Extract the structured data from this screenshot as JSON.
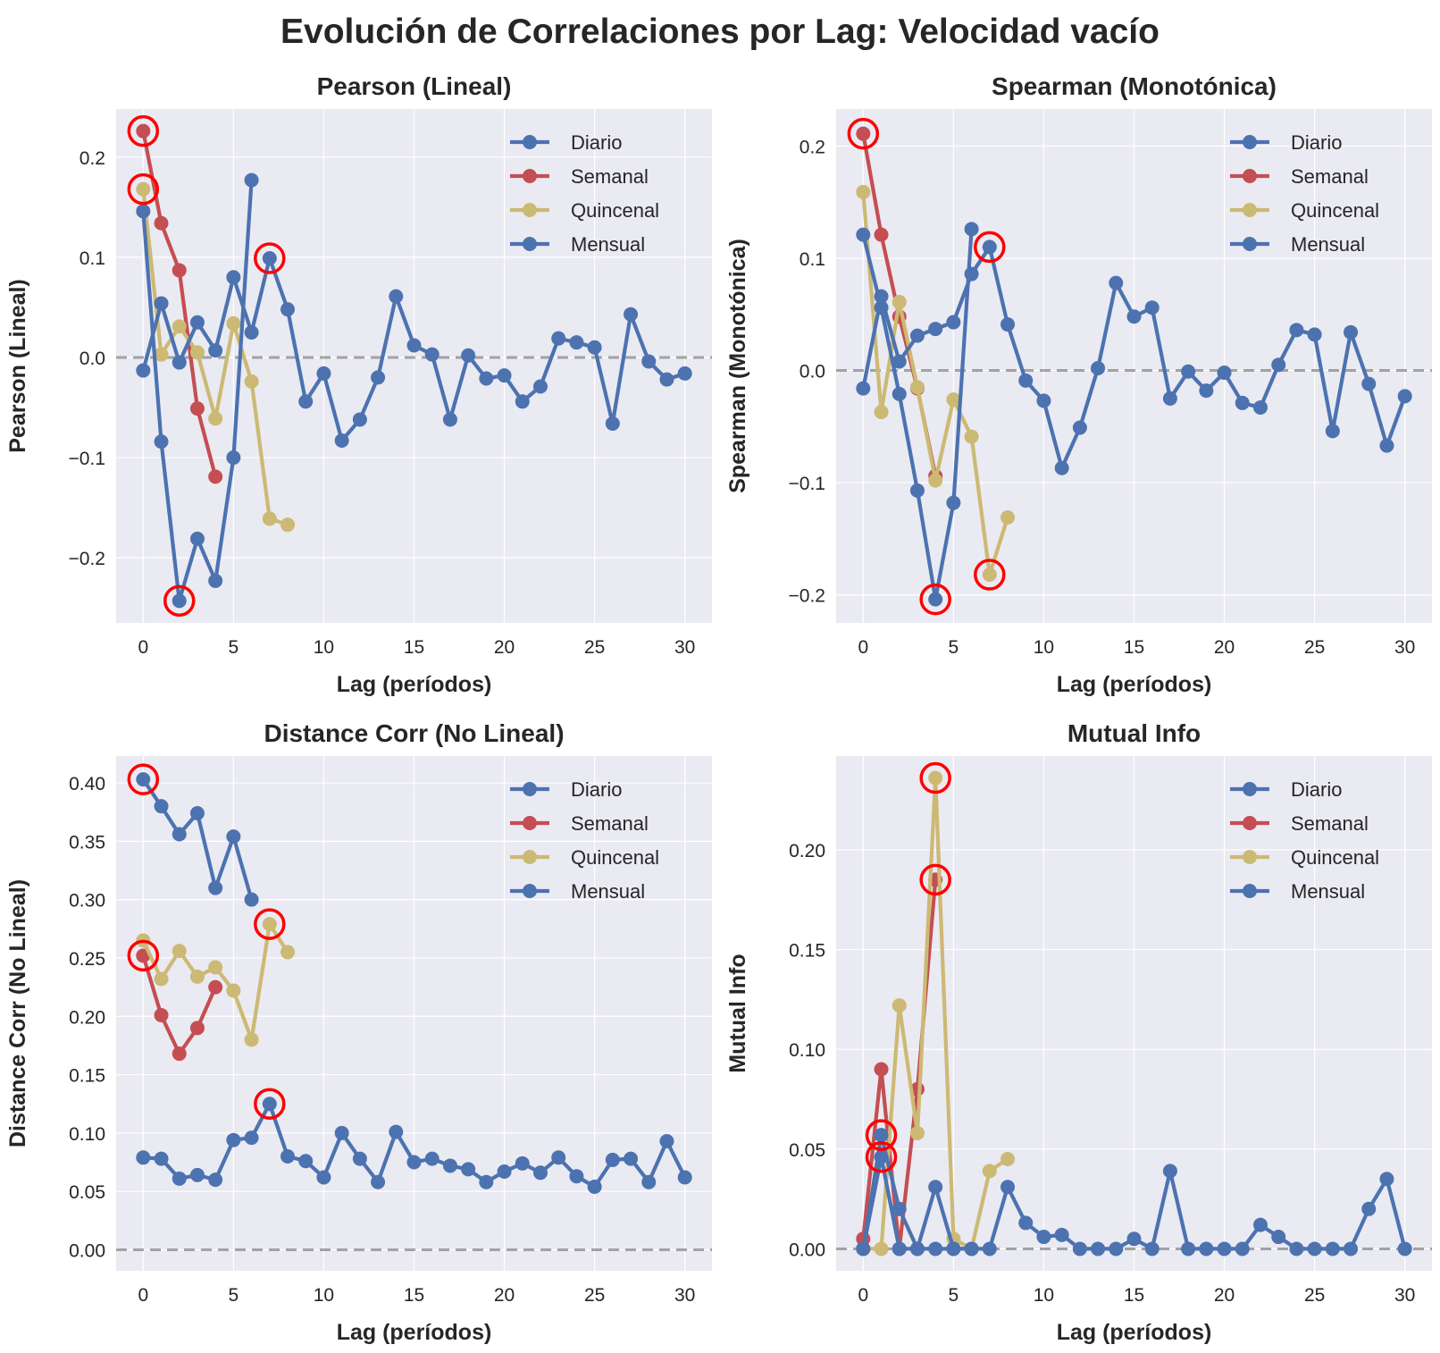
{
  "figure": {
    "title": "Evolución de Correlaciones por Lag: Velocidad vacío"
  },
  "colors": {
    "Diario": "#4c72b0",
    "Semanal": "#c44e52",
    "Quincenal": "#ccb974",
    "Mensual": "#4c72b0",
    "highlight": "#ff0000",
    "zero_line": "#808080",
    "plot_bg": "#eaeaf2",
    "grid": "#ffffff"
  },
  "chart_data": [
    {
      "type": "line",
      "title": "Pearson (Lineal)",
      "xlabel": "Lag (períodos)",
      "ylabel": "Pearson (Lineal)",
      "xlim": [
        -1.5,
        31.5
      ],
      "ylim": [
        -0.265,
        0.248
      ],
      "xticks": [
        0,
        5,
        10,
        15,
        20,
        25,
        30
      ],
      "yticks": [
        -0.2,
        -0.1,
        0.0,
        0.1,
        0.2
      ],
      "ytick_labels": [
        "−0.2",
        "−0.1",
        "0.0",
        "0.1",
        "0.2"
      ],
      "legend": "top-right",
      "grid": true,
      "zero_line": true,
      "series": [
        {
          "name": "Diario",
          "x": [
            0,
            1,
            2,
            3,
            4,
            5,
            6,
            7,
            8,
            9,
            10,
            11,
            12,
            13,
            14,
            15,
            16,
            17,
            18,
            19,
            20,
            21,
            22,
            23,
            24,
            25,
            26,
            27,
            28,
            29,
            30
          ],
          "y": [
            -0.013,
            0.054,
            -0.005,
            0.035,
            0.007,
            0.08,
            0.025,
            0.099,
            0.048,
            -0.044,
            -0.016,
            -0.083,
            -0.062,
            -0.02,
            0.061,
            0.012,
            0.003,
            -0.062,
            0.002,
            -0.021,
            -0.018,
            -0.044,
            -0.029,
            0.019,
            0.015,
            0.01,
            -0.066,
            0.043,
            -0.004,
            -0.022,
            -0.016
          ]
        },
        {
          "name": "Semanal",
          "x": [
            0,
            1,
            2,
            3,
            4
          ],
          "y": [
            0.226,
            0.134,
            0.087,
            -0.051,
            -0.119
          ]
        },
        {
          "name": "Quincenal",
          "x": [
            0,
            1,
            2,
            3,
            4,
            5,
            6,
            7,
            8
          ],
          "y": [
            0.168,
            0.003,
            0.031,
            0.005,
            -0.061,
            0.034,
            -0.024,
            -0.161,
            -0.167
          ]
        },
        {
          "name": "Mensual",
          "x": [
            0,
            1,
            2,
            3,
            4,
            5,
            6
          ],
          "y": [
            0.146,
            -0.084,
            -0.243,
            -0.181,
            -0.223,
            -0.1,
            0.177
          ]
        }
      ],
      "highlights": [
        {
          "x": 0,
          "y": 0.226
        },
        {
          "x": 0,
          "y": 0.168
        },
        {
          "x": 2,
          "y": -0.243
        },
        {
          "x": 7,
          "y": 0.099
        }
      ]
    },
    {
      "type": "line",
      "title": "Spearman (Monotónica)",
      "xlabel": "Lag (períodos)",
      "ylabel": "Spearman (Monotónica)",
      "xlim": [
        -1.5,
        31.5
      ],
      "ylim": [
        -0.225,
        0.233
      ],
      "xticks": [
        0,
        5,
        10,
        15,
        20,
        25,
        30
      ],
      "yticks": [
        -0.2,
        -0.1,
        0.0,
        0.1,
        0.2
      ],
      "ytick_labels": [
        "−0.2",
        "−0.1",
        "0.0",
        "0.1",
        "0.2"
      ],
      "legend": "top-right",
      "grid": true,
      "zero_line": true,
      "series": [
        {
          "name": "Diario",
          "x": [
            0,
            1,
            2,
            3,
            4,
            5,
            6,
            7,
            8,
            9,
            10,
            11,
            12,
            13,
            14,
            15,
            16,
            17,
            18,
            19,
            20,
            21,
            22,
            23,
            24,
            25,
            26,
            27,
            28,
            29,
            30
          ],
          "y": [
            -0.016,
            0.066,
            0.008,
            0.031,
            0.037,
            0.043,
            0.086,
            0.11,
            0.041,
            -0.009,
            -0.027,
            -0.087,
            -0.051,
            0.002,
            0.078,
            0.048,
            0.056,
            -0.025,
            -0.001,
            -0.018,
            -0.002,
            -0.029,
            -0.033,
            0.005,
            0.036,
            0.032,
            -0.054,
            0.034,
            -0.012,
            -0.067,
            -0.023
          ]
        },
        {
          "name": "Semanal",
          "x": [
            0,
            1,
            2,
            3,
            4
          ],
          "y": [
            0.211,
            0.121,
            0.048,
            -0.016,
            -0.094
          ]
        },
        {
          "name": "Quincenal",
          "x": [
            0,
            1,
            2,
            3,
            4,
            5,
            6,
            7,
            8
          ],
          "y": [
            0.159,
            -0.037,
            0.061,
            -0.015,
            -0.098,
            -0.026,
            -0.059,
            -0.182,
            -0.131
          ]
        },
        {
          "name": "Mensual",
          "x": [
            0,
            1,
            2,
            3,
            4,
            5,
            6
          ],
          "y": [
            0.121,
            0.056,
            -0.021,
            -0.107,
            -0.204,
            -0.118,
            0.126
          ]
        }
      ],
      "highlights": [
        {
          "x": 0,
          "y": 0.211
        },
        {
          "x": 4,
          "y": -0.204
        },
        {
          "x": 7,
          "y": 0.11
        },
        {
          "x": 7,
          "y": -0.182
        }
      ]
    },
    {
      "type": "line",
      "title": "Distance Corr (No Lineal)",
      "xlabel": "Lag (períodos)",
      "ylabel": "Distance Corr (No Lineal)",
      "xlim": [
        -1.5,
        31.5
      ],
      "ylim": [
        -0.018,
        0.423
      ],
      "xticks": [
        0,
        5,
        10,
        15,
        20,
        25,
        30
      ],
      "yticks": [
        0.0,
        0.05,
        0.1,
        0.15,
        0.2,
        0.25,
        0.3,
        0.35,
        0.4
      ],
      "ytick_labels": [
        "0.00",
        "0.05",
        "0.10",
        "0.15",
        "0.20",
        "0.25",
        "0.30",
        "0.35",
        "0.40"
      ],
      "legend": "top-right",
      "grid": true,
      "zero_line": true,
      "series": [
        {
          "name": "Diario",
          "x": [
            0,
            1,
            2,
            3,
            4,
            5,
            6,
            7,
            8,
            9,
            10,
            11,
            12,
            13,
            14,
            15,
            16,
            17,
            18,
            19,
            20,
            21,
            22,
            23,
            24,
            25,
            26,
            27,
            28,
            29,
            30
          ],
          "y": [
            0.079,
            0.078,
            0.061,
            0.064,
            0.06,
            0.094,
            0.096,
            0.125,
            0.08,
            0.076,
            0.062,
            0.1,
            0.078,
            0.058,
            0.101,
            0.075,
            0.078,
            0.072,
            0.069,
            0.058,
            0.067,
            0.074,
            0.066,
            0.079,
            0.063,
            0.054,
            0.077,
            0.078,
            0.058,
            0.093,
            0.062
          ]
        },
        {
          "name": "Semanal",
          "x": [
            0,
            1,
            2,
            3,
            4
          ],
          "y": [
            0.252,
            0.201,
            0.168,
            0.19,
            0.225
          ]
        },
        {
          "name": "Quincenal",
          "x": [
            0,
            1,
            2,
            3,
            4,
            5,
            6,
            7,
            8
          ],
          "y": [
            0.265,
            0.232,
            0.256,
            0.234,
            0.242,
            0.222,
            0.18,
            0.279,
            0.255
          ]
        },
        {
          "name": "Mensual",
          "x": [
            0,
            1,
            2,
            3,
            4,
            5,
            6
          ],
          "y": [
            0.403,
            0.38,
            0.356,
            0.374,
            0.31,
            0.354,
            0.3
          ]
        }
      ],
      "highlights": [
        {
          "x": 0,
          "y": 0.403
        },
        {
          "x": 0,
          "y": 0.252
        },
        {
          "x": 7,
          "y": 0.279
        },
        {
          "x": 7,
          "y": 0.125
        }
      ]
    },
    {
      "type": "line",
      "title": "Mutual Info",
      "xlabel": "Lag (períodos)",
      "ylabel": "Mutual Info",
      "xlim": [
        -1.5,
        31.5
      ],
      "ylim": [
        -0.011,
        0.247
      ],
      "xticks": [
        0,
        5,
        10,
        15,
        20,
        25,
        30
      ],
      "yticks": [
        0.0,
        0.05,
        0.1,
        0.15,
        0.2
      ],
      "ytick_labels": [
        "0.00",
        "0.05",
        "0.10",
        "0.15",
        "0.20"
      ],
      "legend": "top-right",
      "grid": true,
      "zero_line": true,
      "series": [
        {
          "name": "Diario",
          "x": [
            0,
            1,
            2,
            3,
            4,
            5,
            6,
            7,
            8,
            9,
            10,
            11,
            12,
            13,
            14,
            15,
            16,
            17,
            18,
            19,
            20,
            21,
            22,
            23,
            24,
            25,
            26,
            27,
            28,
            29,
            30
          ],
          "y": [
            0.0,
            0.057,
            0.02,
            0.0,
            0.031,
            0.0,
            0.0,
            0.0,
            0.031,
            0.013,
            0.006,
            0.007,
            0.0,
            0.0,
            0.0,
            0.005,
            0.0,
            0.039,
            0.0,
            0.0,
            0.0,
            0.0,
            0.012,
            0.006,
            0.0,
            0.0,
            0.0,
            0.0,
            0.02,
            0.035,
            0.0
          ]
        },
        {
          "name": "Semanal",
          "x": [
            0,
            1,
            2,
            3,
            4
          ],
          "y": [
            0.005,
            0.09,
            0.0,
            0.08,
            0.185
          ]
        },
        {
          "name": "Quincenal",
          "x": [
            0,
            1,
            2,
            3,
            4,
            5,
            6,
            7,
            8
          ],
          "y": [
            0.0,
            0.0,
            0.122,
            0.058,
            0.236,
            0.005,
            0.0,
            0.039,
            0.045
          ]
        },
        {
          "name": "Mensual",
          "x": [
            0,
            1,
            2,
            3,
            4,
            5,
            6
          ],
          "y": [
            0.0,
            0.046,
            0.0,
            0.0,
            0.0,
            0.0,
            0.0
          ]
        }
      ],
      "highlights": [
        {
          "x": 1,
          "y": 0.057
        },
        {
          "x": 1,
          "y": 0.046
        },
        {
          "x": 4,
          "y": 0.236
        },
        {
          "x": 4,
          "y": 0.185
        }
      ]
    }
  ]
}
